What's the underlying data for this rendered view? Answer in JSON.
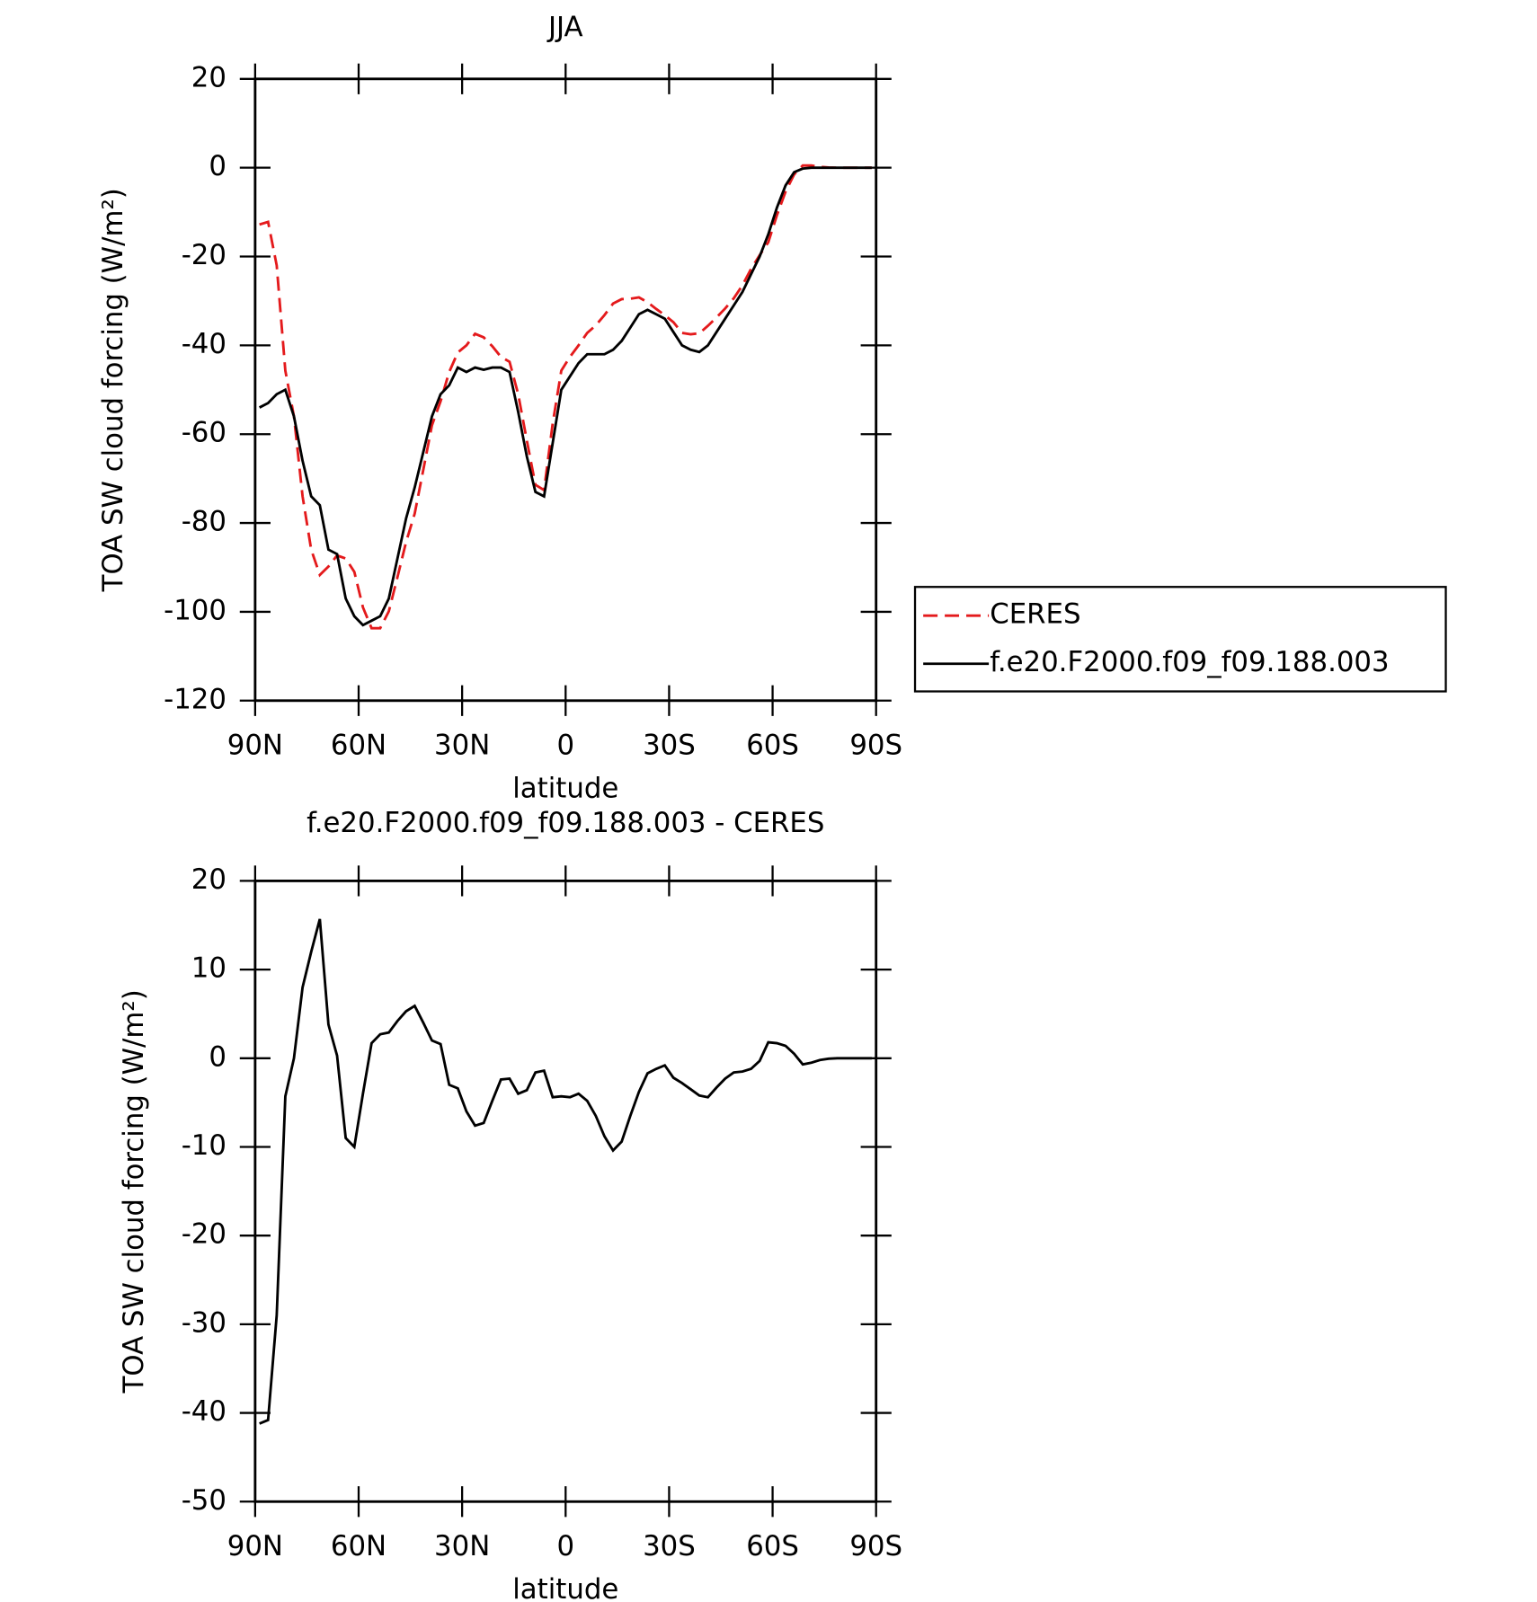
{
  "chart_data": [
    {
      "type": "line",
      "title": "JJA",
      "xlabel": "latitude",
      "ylabel": "TOA SW cloud forcing (W/m²)",
      "xlim": [
        90,
        -90
      ],
      "xticks": [
        {
          "value": 90,
          "label": "90N"
        },
        {
          "value": 60,
          "label": "60N"
        },
        {
          "value": 30,
          "label": "30N"
        },
        0,
        {
          "value": -30,
          "label": "30S"
        },
        {
          "value": -60,
          "label": "60S"
        },
        {
          "value": -90,
          "label": "90S"
        }
      ],
      "ylim": [
        -120,
        20
      ],
      "yticks": [
        -120,
        -100,
        -80,
        -60,
        -40,
        -20,
        0,
        20
      ],
      "legend": "right",
      "x": [
        88.75,
        86.25,
        83.75,
        81.25,
        78.75,
        76.25,
        73.75,
        71.25,
        68.75,
        66.25,
        63.75,
        61.25,
        58.75,
        56.25,
        53.75,
        51.25,
        48.75,
        46.25,
        43.75,
        41.25,
        38.75,
        36.25,
        33.75,
        31.25,
        28.75,
        26.25,
        23.75,
        21.25,
        18.75,
        16.25,
        13.75,
        11.25,
        8.75,
        6.25,
        3.75,
        1.25,
        -1.25,
        -3.75,
        -6.25,
        -8.75,
        -11.25,
        -13.75,
        -16.25,
        -18.75,
        -21.25,
        -23.75,
        -26.25,
        -28.75,
        -31.25,
        -33.75,
        -36.25,
        -38.75,
        -41.25,
        -43.75,
        -46.25,
        -48.75,
        -51.25,
        -53.75,
        -56.25,
        -58.75,
        -61.25,
        -63.75,
        -66.25,
        -68.75,
        -71.25,
        -73.75,
        -76.25,
        -78.75,
        -81.25,
        -83.75,
        -86.25,
        -88.75
      ],
      "series": [
        {
          "name": "CERES",
          "color": "#e41a1c",
          "dash": true,
          "values": [
            -12.8,
            -12.2,
            -22,
            -45.7,
            -56,
            -74,
            -86,
            -91.7,
            -89.8,
            -87.3,
            -88,
            -91,
            -99,
            -103.7,
            -103.7,
            -99.9,
            -92.2,
            -84.3,
            -77.9,
            -68,
            -58,
            -52.6,
            -46,
            -41.6,
            -40,
            -37.4,
            -38.2,
            -40.2,
            -42.6,
            -43.7,
            -51,
            -61.4,
            -71.4,
            -72.6,
            -57.6,
            -45.7,
            -42.6,
            -40,
            -37.2,
            -35.5,
            -33.2,
            -30.6,
            -29.6,
            -29.5,
            -29.2,
            -30.3,
            -31.8,
            -33.2,
            -34.8,
            -37.2,
            -37.5,
            -37.3,
            -35.6,
            -33.7,
            -31.7,
            -29.4,
            -26.5,
            -22.8,
            -19.7,
            -16.8,
            -10.7,
            -5.4,
            -1.5,
            0.5,
            0.5,
            0.2,
            0.05,
            0,
            0,
            0,
            0,
            0
          ]
        },
        {
          "name": "f.e20.F2000.f09_f09.188.003",
          "color": "#000000",
          "dash": false,
          "values": [
            -54,
            -53,
            -51,
            -50,
            -56,
            -66,
            -74,
            -76,
            -86,
            -87,
            -97,
            -101,
            -103,
            -102,
            -101,
            -97,
            -88,
            -79,
            -72,
            -64,
            -56,
            -51,
            -49,
            -45,
            -46,
            -45,
            -45.5,
            -45,
            -45,
            -46,
            -55,
            -65,
            -73,
            -74,
            -62,
            -50,
            -47,
            -44,
            -42,
            -42,
            -42,
            -41,
            -39,
            -36,
            -33,
            -32,
            -33,
            -34,
            -37,
            -40,
            -41,
            -41.5,
            -40,
            -37,
            -34,
            -31,
            -28,
            -24,
            -20,
            -15,
            -9,
            -4,
            -1,
            -0.2,
            0,
            0,
            0,
            0,
            0,
            0,
            0,
            0
          ]
        }
      ]
    },
    {
      "type": "line",
      "title": "f.e20.F2000.f09_f09.188.003 - CERES",
      "xlabel": "latitude",
      "ylabel": "TOA SW cloud forcing (W/m²)",
      "xlim": [
        90,
        -90
      ],
      "xticks": [
        {
          "value": 90,
          "label": "90N"
        },
        {
          "value": 60,
          "label": "60N"
        },
        {
          "value": 30,
          "label": "30N"
        },
        0,
        {
          "value": -30,
          "label": "30S"
        },
        {
          "value": -60,
          "label": "60S"
        },
        {
          "value": -90,
          "label": "90S"
        }
      ],
      "ylim": [
        -50,
        20
      ],
      "yticks": [
        -50,
        -40,
        -30,
        -20,
        -10,
        0,
        10,
        20
      ],
      "x": [
        88.75,
        86.25,
        83.75,
        81.25,
        78.75,
        76.25,
        73.75,
        71.25,
        68.75,
        66.25,
        63.75,
        61.25,
        58.75,
        56.25,
        53.75,
        51.25,
        48.75,
        46.25,
        43.75,
        41.25,
        38.75,
        36.25,
        33.75,
        31.25,
        28.75,
        26.25,
        23.75,
        21.25,
        18.75,
        16.25,
        13.75,
        11.25,
        8.75,
        6.25,
        3.75,
        1.25,
        -1.25,
        -3.75,
        -6.25,
        -8.75,
        -11.25,
        -13.75,
        -16.25,
        -18.75,
        -21.25,
        -23.75,
        -26.25,
        -28.75,
        -31.25,
        -33.75,
        -36.25,
        -38.75,
        -41.25,
        -43.75,
        -46.25,
        -48.75,
        -51.25,
        -53.75,
        -56.25,
        -58.75,
        -61.25,
        -63.75,
        -66.25,
        -68.75,
        -71.25,
        -73.75,
        -76.25,
        -78.75,
        -81.25,
        -83.75,
        -86.25,
        -88.75
      ],
      "series": [
        {
          "color": "#000000",
          "dash": false,
          "values": [
            -41.2,
            -40.8,
            -29,
            -4.3,
            0,
            8,
            12,
            15.7,
            3.8,
            0.3,
            -9,
            -10,
            -4,
            1.7,
            2.7,
            2.9,
            4.2,
            5.3,
            5.9,
            4,
            2,
            1.6,
            -3,
            -3.4,
            -6,
            -7.6,
            -7.3,
            -4.8,
            -2.4,
            -2.3,
            -4,
            -3.6,
            -1.6,
            -1.4,
            -4.4,
            -4.3,
            -4.4,
            -4,
            -4.8,
            -6.5,
            -8.8,
            -10.4,
            -9.4,
            -6.5,
            -3.8,
            -1.7,
            -1.2,
            -0.8,
            -2.2,
            -2.8,
            -3.5,
            -4.2,
            -4.4,
            -3.3,
            -2.3,
            -1.6,
            -1.5,
            -1.2,
            -0.3,
            1.8,
            1.7,
            1.4,
            0.5,
            -0.7,
            -0.5,
            -0.2,
            -0.05,
            0,
            0,
            0,
            0,
            0
          ]
        }
      ]
    }
  ]
}
